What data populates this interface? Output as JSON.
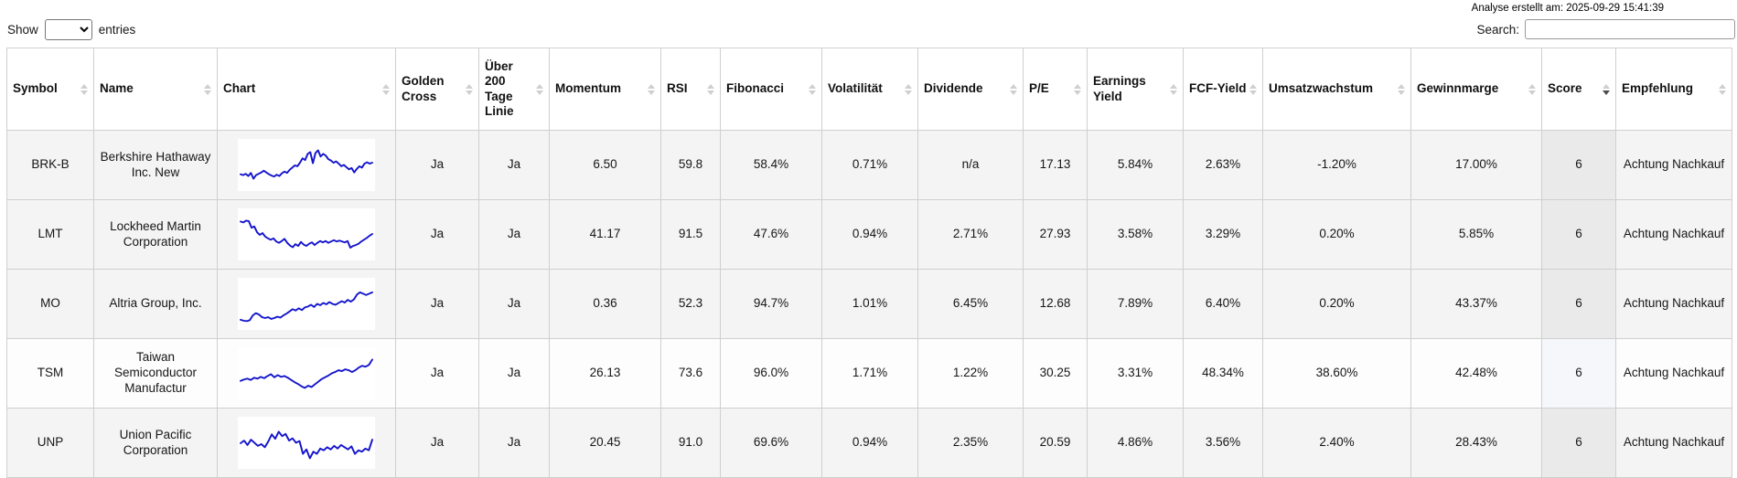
{
  "meta": {
    "analysis_created": "Analyse erstellt am: 2025-09-29 15:41:39"
  },
  "controls": {
    "show_label": "Show",
    "entries_label": "entries",
    "page_length_value": "",
    "search_label": "Search:",
    "search_value": ""
  },
  "colors": {
    "sparkline": "#1414cc",
    "row_gray": "#f4f4f4",
    "row_light": "#fdfdfe",
    "score_gray": "#eaeaea",
    "border": "#cfcfcf",
    "sort_active": "#4d4d4d"
  },
  "table": {
    "columns": [
      {
        "label": "Symbol",
        "sort": "none"
      },
      {
        "label": "Name",
        "sort": "none"
      },
      {
        "label": "Chart",
        "sort": "none"
      },
      {
        "label": "Golden Cross",
        "sort": "none"
      },
      {
        "label": "Über 200 Tage Linie",
        "sort": "none"
      },
      {
        "label": "Momentum",
        "sort": "none"
      },
      {
        "label": "RSI",
        "sort": "none"
      },
      {
        "label": "Fibonacci",
        "sort": "none"
      },
      {
        "label": "Volatilität",
        "sort": "none"
      },
      {
        "label": "Dividende",
        "sort": "none"
      },
      {
        "label": "P/E",
        "sort": "none"
      },
      {
        "label": "Earnings Yield",
        "sort": "none"
      },
      {
        "label": "FCF-Yield",
        "sort": "none"
      },
      {
        "label": "Umsatzwachstum",
        "sort": "none"
      },
      {
        "label": "Gewinnmarge",
        "sort": "none"
      },
      {
        "label": "Score",
        "sort": "desc"
      },
      {
        "label": "Empfehlung",
        "sort": "none"
      }
    ],
    "rows": [
      {
        "symbol": "BRK-B",
        "name": "Berkshire Hathaway Inc. New",
        "golden_cross": "Ja",
        "ueber_200_tage": "Ja",
        "momentum": "6.50",
        "rsi": "59.8",
        "fibonacci": "58.4%",
        "volatilitaet": "0.71%",
        "dividende": "n/a",
        "pe": "17.13",
        "earnings_yield": "5.84%",
        "fcf_yield": "2.63%",
        "umsatzwachstum": "-1.20%",
        "gewinnmarge": "17.00%",
        "score": "6",
        "empfehlung": "Achtung Nachkauf",
        "spark": [
          0.32,
          0.3,
          0.33,
          0.28,
          0.35,
          0.22,
          0.3,
          0.33,
          0.36,
          0.4,
          0.36,
          0.32,
          0.29,
          0.27,
          0.31,
          0.28,
          0.34,
          0.38,
          0.35,
          0.42,
          0.47,
          0.52,
          0.5,
          0.58,
          0.68,
          0.64,
          0.78,
          0.82,
          0.57,
          0.8,
          0.86,
          0.72,
          0.78,
          0.74,
          0.66,
          0.63,
          0.58,
          0.61,
          0.56,
          0.5,
          0.53,
          0.48,
          0.43,
          0.46,
          0.36,
          0.44,
          0.5,
          0.47,
          0.56,
          0.59,
          0.56,
          0.58
        ]
      },
      {
        "symbol": "LMT",
        "name": "Lockheed Martin Corporation",
        "golden_cross": "Ja",
        "ueber_200_tage": "Ja",
        "momentum": "41.17",
        "rsi": "91.5",
        "fibonacci": "47.6%",
        "volatilitaet": "0.94%",
        "dividende": "2.71%",
        "pe": "27.93",
        "earnings_yield": "3.58%",
        "fcf_yield": "3.29%",
        "umsatzwachstum": "0.20%",
        "gewinnmarge": "5.85%",
        "score": "6",
        "empfehlung": "Achtung Nachkauf",
        "spark": [
          0.82,
          0.8,
          0.84,
          0.83,
          0.68,
          0.71,
          0.58,
          0.52,
          0.56,
          0.48,
          0.44,
          0.41,
          0.44,
          0.37,
          0.34,
          0.38,
          0.43,
          0.34,
          0.28,
          0.24,
          0.31,
          0.27,
          0.36,
          0.3,
          0.27,
          0.32,
          0.35,
          0.29,
          0.34,
          0.38,
          0.35,
          0.38,
          0.34,
          0.37,
          0.4,
          0.37,
          0.39,
          0.37,
          0.35,
          0.38,
          0.23,
          0.27,
          0.29,
          0.32,
          0.37,
          0.41,
          0.45,
          0.5,
          0.54
        ]
      },
      {
        "symbol": "MO",
        "name": "Altria Group, Inc.",
        "golden_cross": "Ja",
        "ueber_200_tage": "Ja",
        "momentum": "0.36",
        "rsi": "52.3",
        "fibonacci": "94.7%",
        "volatilitaet": "1.01%",
        "dividende": "6.45%",
        "pe": "12.68",
        "earnings_yield": "7.89%",
        "fcf_yield": "6.40%",
        "umsatzwachstum": "0.20%",
        "gewinnmarge": "43.37%",
        "score": "6",
        "empfehlung": "Achtung Nachkauf",
        "spark": [
          0.17,
          0.15,
          0.14,
          0.16,
          0.27,
          0.32,
          0.29,
          0.23,
          0.21,
          0.23,
          0.19,
          0.21,
          0.24,
          0.22,
          0.27,
          0.31,
          0.36,
          0.41,
          0.38,
          0.43,
          0.39,
          0.45,
          0.47,
          0.51,
          0.46,
          0.53,
          0.5,
          0.55,
          0.52,
          0.57,
          0.53,
          0.51,
          0.55,
          0.59,
          0.56,
          0.62,
          0.58,
          0.63,
          0.74,
          0.79,
          0.76,
          0.73,
          0.76,
          0.79
        ]
      },
      {
        "symbol": "TSM",
        "name": "Taiwan Semiconductor Manufactur",
        "golden_cross": "Ja",
        "ueber_200_tage": "Ja",
        "momentum": "26.13",
        "rsi": "73.6",
        "fibonacci": "96.0%",
        "volatilitaet": "1.71%",
        "dividende": "1.22%",
        "pe": "30.25",
        "earnings_yield": "3.31%",
        "fcf_yield": "48.34%",
        "umsatzwachstum": "38.60%",
        "gewinnmarge": "42.48%",
        "score": "6",
        "empfehlung": "Achtung Nachkauf",
        "spark": [
          0.36,
          0.39,
          0.41,
          0.38,
          0.43,
          0.41,
          0.45,
          0.42,
          0.47,
          0.51,
          0.44,
          0.49,
          0.45,
          0.47,
          0.43,
          0.38,
          0.33,
          0.29,
          0.24,
          0.2,
          0.25,
          0.22,
          0.28,
          0.34,
          0.4,
          0.44,
          0.48,
          0.53,
          0.56,
          0.6,
          0.58,
          0.62,
          0.6,
          0.56,
          0.6,
          0.66,
          0.7,
          0.68,
          0.72,
          0.84
        ]
      },
      {
        "symbol": "UNP",
        "name": "Union Pacific Corporation",
        "golden_cross": "Ja",
        "ueber_200_tage": "Ja",
        "momentum": "20.45",
        "rsi": "91.0",
        "fibonacci": "69.6%",
        "volatilitaet": "0.94%",
        "dividende": "2.35%",
        "pe": "20.59",
        "earnings_yield": "4.86%",
        "fcf_yield": "3.56%",
        "umsatzwachstum": "2.40%",
        "gewinnmarge": "28.43%",
        "score": "6",
        "empfehlung": "Achtung Nachkauf",
        "spark": [
          0.52,
          0.58,
          0.48,
          0.6,
          0.53,
          0.46,
          0.5,
          0.43,
          0.56,
          0.72,
          0.62,
          0.78,
          0.68,
          0.73,
          0.58,
          0.63,
          0.53,
          0.57,
          0.28,
          0.38,
          0.18,
          0.33,
          0.28,
          0.4,
          0.36,
          0.43,
          0.38,
          0.46,
          0.4,
          0.48,
          0.43,
          0.38,
          0.45,
          0.28,
          0.36,
          0.33,
          0.4,
          0.36,
          0.6
        ]
      }
    ]
  }
}
